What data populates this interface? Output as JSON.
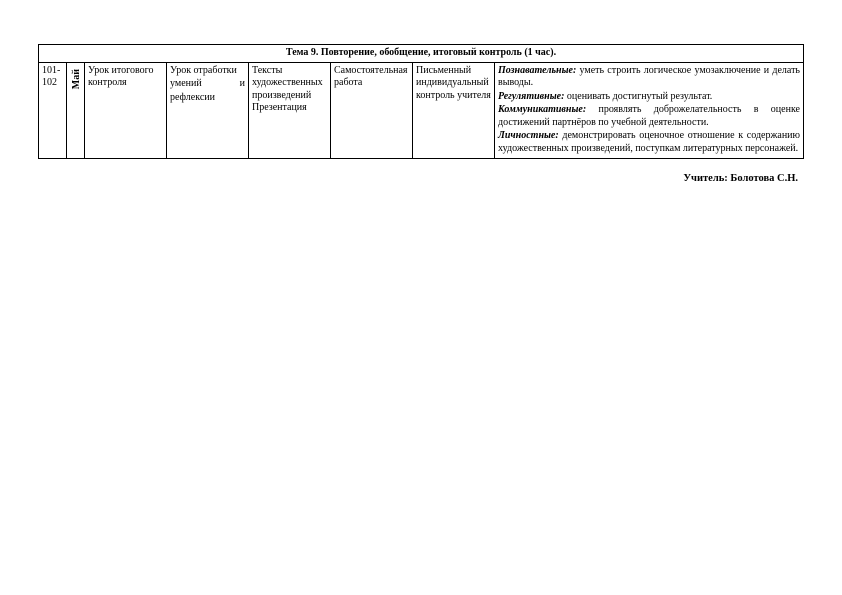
{
  "header": "Тема 9. Повторение, обобщение, итоговый контроль (1 час).",
  "row": {
    "num": "101-102",
    "month": "Май",
    "c1": " Урок итогового контроля",
    "c2_l1": "Урок  отработки",
    "c2_l2": "умений",
    "c2_l3": "и",
    "c2_l4": "рефлексии",
    "c3": "Тексты художественных произведений Презентация",
    "c4": "Самостоятельная работа",
    "c5": "Письменный индивидуальный контроль учителя",
    "c6": {
      "p1a": "Познавательные:",
      "p1b": " уметь строить логическое умозаключение и делать выводы.",
      "p2a": "Регулятивные:",
      "p2b": " оценивать  достигнутый результат.",
      "p3a": "Коммуникативные:",
      "p3b": " проявлять доброжелательность в оценке достижений партнёров по учебной деятельности.",
      "p4a": "Личностные:",
      "p4b": " демонстрировать оценочное отношение к содержанию художественных произведений, поступкам литературных персонажей."
    }
  },
  "signature": "Учитель: Болотова С.Н."
}
